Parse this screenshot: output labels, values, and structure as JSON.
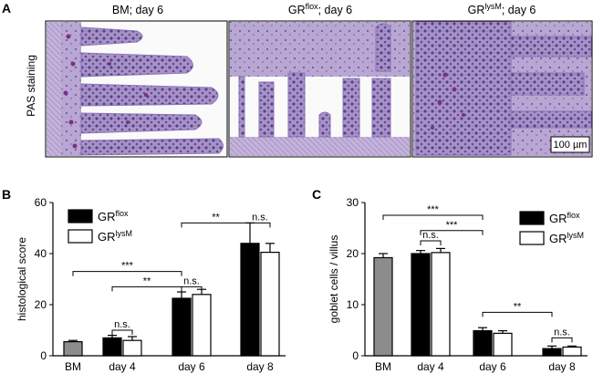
{
  "panelA": {
    "letter": "A",
    "side_label": "PAS staining",
    "images": [
      {
        "title": "BM; day 6",
        "base": "BM; day 6",
        "sup": "",
        "after": ""
      },
      {
        "title": "GRflox; day 6",
        "base": "GR",
        "sup": "flox",
        "after": "; day 6"
      },
      {
        "title": "GRlysM; day 6",
        "base": "GR",
        "sup": "lysM",
        "after": "; day 6"
      }
    ],
    "scale_bar": "100 µm",
    "colors": {
      "tissue": "#a68cc2",
      "nuclei": "#4a3f8c",
      "goblet": "#7a2f8a",
      "background": "#ffffff"
    }
  },
  "legend": {
    "series": [
      {
        "base": "GR",
        "sup": "flox",
        "color": "#000000"
      },
      {
        "base": "GR",
        "sup": "lysM",
        "color": "#ffffff"
      }
    ],
    "bm_color": "#8c8c8c"
  },
  "chart_data": [
    {
      "panel": "B",
      "type": "bar",
      "ylabel": "histological score",
      "ylim": [
        0,
        60
      ],
      "yticks": [
        0,
        20,
        40,
        60
      ],
      "categories": [
        "BM",
        "day 4",
        "day 6",
        "day 8"
      ],
      "bars": [
        {
          "category": "BM",
          "series": "BM",
          "value": 5.5,
          "error": 0.5
        },
        {
          "category": "day 4",
          "series": "GRflox",
          "value": 7,
          "error": 1
        },
        {
          "category": "day 4",
          "series": "GRlysM",
          "value": 6,
          "error": 1.5
        },
        {
          "category": "day 6",
          "series": "GRflox",
          "value": 22.5,
          "error": 2.5
        },
        {
          "category": "day 6",
          "series": "GRlysM",
          "value": 24,
          "error": 2
        },
        {
          "category": "day 8",
          "series": "GRflox",
          "value": 44,
          "error": 8
        },
        {
          "category": "day 8",
          "series": "GRlysM",
          "value": 40.5,
          "error": 3.5
        }
      ],
      "significance": [
        {
          "label": "**",
          "from": [
            "day 6",
            "GRflox"
          ],
          "to": [
            "day 8",
            "GRflox"
          ],
          "y": 52
        },
        {
          "label": "n.s.",
          "from": [
            "day 8",
            "GRflox"
          ],
          "to": [
            "day 8",
            "GRlysM"
          ],
          "y": 52
        },
        {
          "label": "***",
          "from": [
            "BM",
            "BM"
          ],
          "to": [
            "day 6",
            "GRflox"
          ],
          "y": 33
        },
        {
          "label": "**",
          "from": [
            "day 4",
            "GRflox"
          ],
          "to": [
            "day 6",
            "GRflox"
          ],
          "y": 27
        },
        {
          "label": "n.s.",
          "from": [
            "day 6",
            "GRflox"
          ],
          "to": [
            "day 6",
            "GRlysM"
          ],
          "y": 27
        },
        {
          "label": "n.s.",
          "from": [
            "day 4",
            "GRflox"
          ],
          "to": [
            "day 4",
            "GRlysM"
          ],
          "y": 10
        }
      ]
    },
    {
      "panel": "C",
      "type": "bar",
      "ylabel": "goblet cells / villus",
      "ylim": [
        0,
        30
      ],
      "yticks": [
        0,
        10,
        20,
        30
      ],
      "categories": [
        "BM",
        "day 4",
        "day 6",
        "day 8"
      ],
      "bars": [
        {
          "category": "BM",
          "series": "BM",
          "value": 19.2,
          "error": 0.8
        },
        {
          "category": "day 4",
          "series": "GRflox",
          "value": 20,
          "error": 0.6
        },
        {
          "category": "day 4",
          "series": "GRlysM",
          "value": 20.2,
          "error": 0.8
        },
        {
          "category": "day 6",
          "series": "GRflox",
          "value": 4.9,
          "error": 0.6
        },
        {
          "category": "day 6",
          "series": "GRlysM",
          "value": 4.4,
          "error": 0.5
        },
        {
          "category": "day 8",
          "series": "GRflox",
          "value": 1.4,
          "error": 0.5
        },
        {
          "category": "day 8",
          "series": "GRlysM",
          "value": 1.7,
          "error": 0.2
        }
      ],
      "significance": [
        {
          "label": "***",
          "from": [
            "BM",
            "BM"
          ],
          "to": [
            "day 6",
            "GRflox"
          ],
          "y": 27.5
        },
        {
          "label": "***",
          "from": [
            "day 4",
            "GRflox"
          ],
          "to": [
            "day 6",
            "GRflox"
          ],
          "y": 24.5
        },
        {
          "label": "n.s.",
          "from": [
            "day 4",
            "GRflox"
          ],
          "to": [
            "day 4",
            "GRlysM"
          ],
          "y": 22.5
        },
        {
          "label": "**",
          "from": [
            "day 6",
            "GRflox"
          ],
          "to": [
            "day 8",
            "GRflox"
          ],
          "y": 8.5
        },
        {
          "label": "n.s.",
          "from": [
            "day 8",
            "GRflox"
          ],
          "to": [
            "day 8",
            "GRlysM"
          ],
          "y": 3.5
        }
      ]
    }
  ],
  "panelB_letter": "B",
  "panelC_letter": "C"
}
